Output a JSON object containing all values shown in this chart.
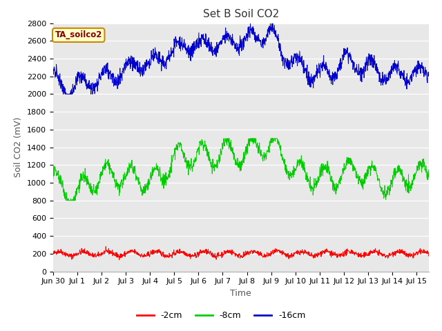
{
  "title": "Set B Soil CO2",
  "xlabel": "Time",
  "ylabel": "Soil CO2 (mV)",
  "annotation": "TA_soilco2",
  "ylim": [
    0,
    2800
  ],
  "yticks": [
    0,
    200,
    400,
    600,
    800,
    1000,
    1200,
    1400,
    1600,
    1800,
    2000,
    2200,
    2400,
    2600,
    2800
  ],
  "xtick_labels": [
    "Jun 30",
    "Jul 1",
    "Jul 2",
    "Jul 3",
    "Jul 4",
    "Jul 5",
    "Jul 6",
    "Jul 7",
    "Jul 8",
    "Jul 9",
    "Jul 10",
    "Jul 11",
    "Jul 12",
    "Jul 13",
    "Jul 14",
    "Jul 15"
  ],
  "line_colors": {
    "2cm": "#ff0000",
    "8cm": "#00cc00",
    "16cm": "#0000cc"
  },
  "legend_labels": [
    "-2cm",
    "-8cm",
    "-16cm"
  ],
  "figure_bg": "#ffffff",
  "axes_bg": "#e8e8e8",
  "title_fontsize": 11,
  "axis_label_fontsize": 9,
  "tick_fontsize": 8,
  "annotation_bg": "#ffffcc",
  "annotation_color": "#880000",
  "annotation_edge": "#cc8800"
}
